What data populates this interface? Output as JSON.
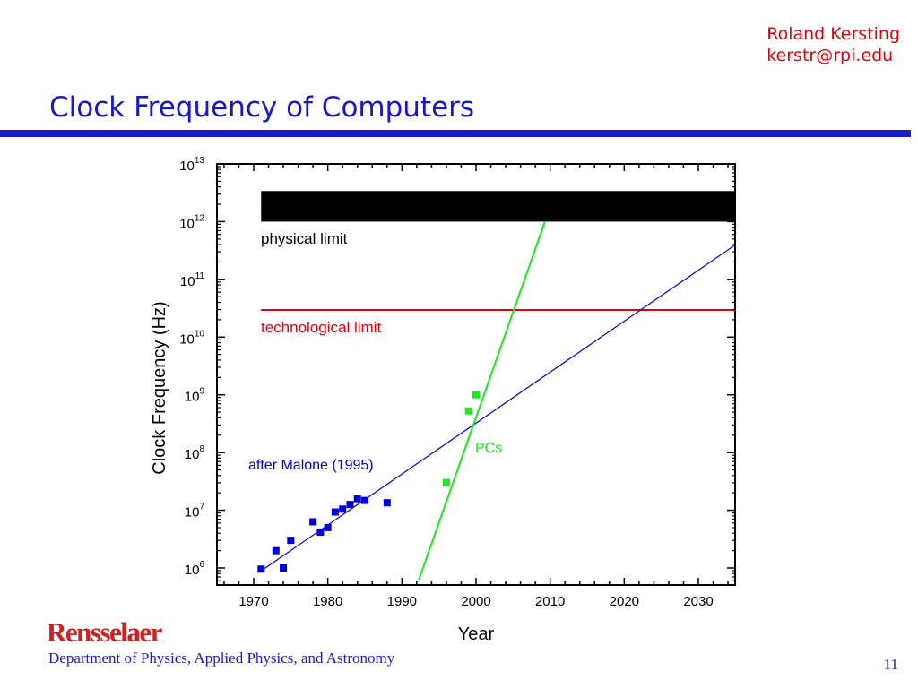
{
  "author": {
    "name": "Roland Kersting",
    "email": "kerstr@rpi.edu"
  },
  "slide": {
    "title": "Clock Frequency of Computers",
    "page_number": "11"
  },
  "footer": {
    "logo_text": "Rensselaer",
    "department": "Department of Physics, Applied Physics, and Astronomy"
  },
  "colors": {
    "title": "#1818c8",
    "author": "#e8000b",
    "rule": "#1a1ad4",
    "blue_series": "#0000d8",
    "green_series": "#1ee81e",
    "tech_limit": "#e8000b",
    "phys_limit": "#000000"
  },
  "chart_data": {
    "type": "scatter",
    "xlabel": "Year",
    "ylabel": "Clock Frequency (Hz)",
    "xlim": [
      1965,
      2035
    ],
    "ylim": [
      5.8,
      13
    ],
    "yscale": "log",
    "xticks": [
      1970,
      1980,
      1990,
      2000,
      2010,
      2020,
      2030
    ],
    "yticks": [
      6,
      7,
      8,
      9,
      10,
      11,
      12,
      13
    ],
    "ytick_base": "10",
    "grid": false,
    "series": [
      {
        "marker": "square",
        "color": "#0000d8",
        "points": [
          [
            1971,
            5.98
          ],
          [
            1973,
            6.3
          ],
          [
            1974,
            6.0
          ],
          [
            1975,
            6.48
          ],
          [
            1978,
            6.8
          ],
          [
            1979,
            6.62
          ],
          [
            1980,
            6.7
          ],
          [
            1981,
            6.97
          ],
          [
            1982,
            7.02
          ],
          [
            1983,
            7.1
          ],
          [
            1984,
            7.2
          ],
          [
            1985,
            7.17
          ],
          [
            1988,
            7.13
          ]
        ]
      },
      {
        "name": "PCs",
        "marker": "square",
        "color": "#1ee81e",
        "points": [
          [
            1996,
            7.48
          ],
          [
            1999,
            8.72
          ],
          [
            2000,
            9.0
          ]
        ]
      }
    ],
    "fit_lines": [
      {
        "label": "after Malone (1995)",
        "color": "#0000d8",
        "x": [
          1971,
          2035
        ],
        "y": [
          5.95,
          11.6
        ]
      },
      {
        "color": "#1ee81e",
        "x": [
          1992.3,
          2009.3
        ],
        "y": [
          5.8,
          12.0
        ]
      }
    ],
    "limits": [
      {
        "label": "technological limit",
        "color": "#e8000b",
        "x": [
          1971,
          2035
        ],
        "y": 10.47
      },
      {
        "label": "physical limit",
        "color": "#000000",
        "x": [
          1971,
          2035
        ],
        "y_range": [
          12.0,
          12.53
        ]
      }
    ]
  }
}
